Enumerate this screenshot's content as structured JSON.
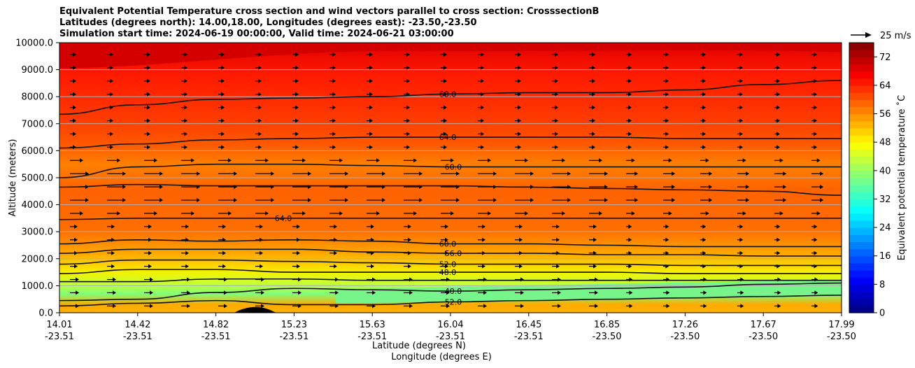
{
  "chart_data": {
    "type": "heatmap",
    "title_lines": [
      "Equivalent Potential Temperature cross section and wind vectors parallel to cross section: CrosssectionB",
      "Latitudes (degrees north): 14.00,18.00, Longitudes (degrees east): -23.50,-23.50",
      "Simulation start time: 2024-06-19 00:00:00, Valid time: 2024-06-21 03:00:00"
    ],
    "ylabel": "Altitude (meters)",
    "xlabel_lat": "Latitude (degrees N)",
    "xlabel_lon": "Longitude (degrees E)",
    "ylim": [
      0,
      10000
    ],
    "y_ticks": [
      "0.0",
      "1000.0",
      "2000.0",
      "3000.0",
      "4000.0",
      "5000.0",
      "6000.0",
      "7000.0",
      "8000.0",
      "9000.0",
      "10000.0"
    ],
    "x_ticks": [
      {
        "lat": "14.01",
        "lon": "-23.51"
      },
      {
        "lat": "14.42",
        "lon": "-23.51"
      },
      {
        "lat": "14.82",
        "lon": "-23.51"
      },
      {
        "lat": "15.23",
        "lon": "-23.51"
      },
      {
        "lat": "15.63",
        "lon": "-23.51"
      },
      {
        "lat": "16.04",
        "lon": "-23.51"
      },
      {
        "lat": "16.45",
        "lon": "-23.51"
      },
      {
        "lat": "16.85",
        "lon": "-23.50"
      },
      {
        "lat": "17.26",
        "lon": "-23.50"
      },
      {
        "lat": "17.67",
        "lon": "-23.50"
      },
      {
        "lat": "17.99",
        "lon": "-23.50"
      }
    ],
    "colorbar": {
      "label": "Equivalent potential temperature ˚C",
      "range": [
        0,
        76
      ],
      "ticks": [
        "0",
        "8",
        "16",
        "24",
        "32",
        "40",
        "48",
        "56",
        "64",
        "72"
      ],
      "colormap": "jet"
    },
    "vector_key": "25 m/s",
    "grid": true,
    "contours": [
      {
        "label": "68.0",
        "y": [
          7350,
          7700,
          7900,
          7950,
          8000,
          8100,
          8150,
          8150,
          8250,
          8450,
          8600
        ]
      },
      {
        "label": "64.0",
        "y": [
          6100,
          6250,
          6400,
          6450,
          6500,
          6500,
          6500,
          6500,
          6450,
          6450,
          6450
        ]
      },
      {
        "label": "60.0",
        "y": [
          5000,
          5400,
          5500,
          5500,
          5450,
          5400,
          5400,
          5400,
          5400,
          5400,
          5400
        ]
      },
      {
        "label": "",
        "y": [
          4650,
          4750,
          4700,
          4700,
          4700,
          4700,
          4650,
          4600,
          4550,
          4500,
          4350
        ]
      },
      {
        "label": "64.0",
        "y": [
          3450,
          3500,
          3500,
          3500,
          3500,
          3500,
          3500,
          3500,
          3500,
          3500,
          3500
        ]
      },
      {
        "label": "60.0",
        "y": [
          2550,
          2700,
          2650,
          2700,
          2650,
          2550,
          2550,
          2500,
          2450,
          2450,
          2450
        ]
      },
      {
        "label": "56.0",
        "y": [
          2200,
          2350,
          2350,
          2350,
          2250,
          2200,
          2200,
          2150,
          2150,
          2100,
          2100
        ]
      },
      {
        "label": "52.0",
        "y": [
          1800,
          1950,
          1950,
          1900,
          1850,
          1800,
          1800,
          1800,
          1750,
          1750,
          1750
        ]
      },
      {
        "label": "48.0",
        "y": [
          1450,
          1600,
          1600,
          1500,
          1500,
          1500,
          1500,
          1500,
          1450,
          1450,
          1450
        ]
      },
      {
        "label": "",
        "y": [
          1150,
          1150,
          1250,
          1250,
          1200,
          1200,
          1200,
          1200,
          1200,
          1200,
          1200
        ]
      },
      {
        "label": "40.0",
        "y": [
          450,
          500,
          750,
          900,
          850,
          800,
          850,
          900,
          950,
          1050,
          1100
        ]
      },
      {
        "label": "52.0",
        "y": [
          250,
          350,
          450,
          300,
          300,
          400,
          450,
          500,
          550,
          600,
          650
        ]
      }
    ]
  }
}
